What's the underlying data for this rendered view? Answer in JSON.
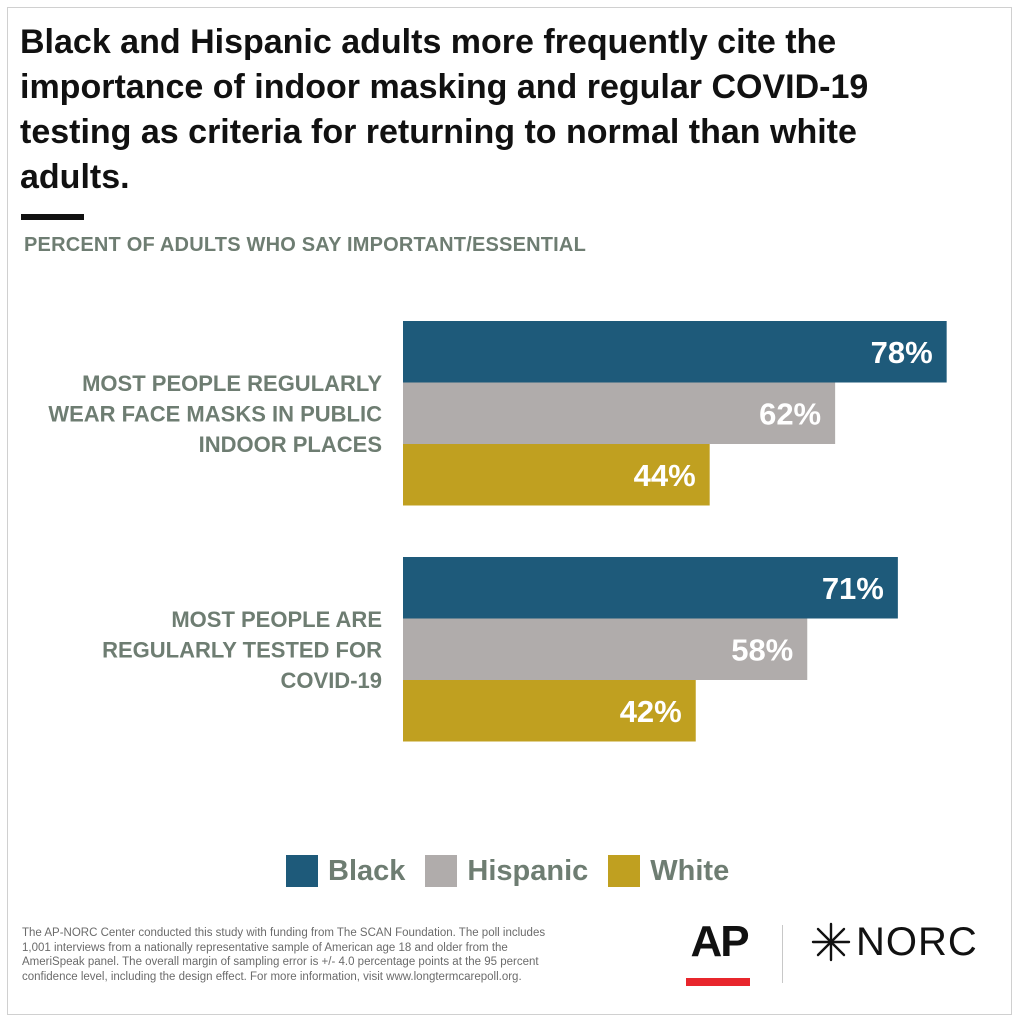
{
  "title": "Black and Hispanic adults more frequently cite the importance of indoor masking and regular COVID-19 testing as criteria for returning to normal than white adults.",
  "subtitle": "PERCENT OF ADULTS WHO SAY IMPORTANT/ESSENTIAL",
  "chart_data": {
    "type": "bar",
    "orientation": "horizontal",
    "title": "Black and Hispanic adults more frequently cite the importance of indoor masking and regular COVID-19 testing as criteria for returning to normal than white adults.",
    "subtitle": "PERCENT OF ADULTS WHO SAY IMPORTANT/ESSENTIAL",
    "categories": [
      [
        "MOST PEOPLE REGULARLY",
        "WEAR FACE MASKS IN PUBLIC",
        "INDOOR PLACES"
      ],
      [
        "MOST PEOPLE ARE",
        "REGULARLY TESTED FOR",
        "COVID-19"
      ]
    ],
    "series": [
      {
        "name": "Black",
        "values": [
          78,
          71
        ],
        "labels": [
          "78%",
          "71%"
        ],
        "color": "#1e5a7a"
      },
      {
        "name": "Hispanic",
        "values": [
          62,
          58
        ],
        "labels": [
          "62%",
          "58%"
        ],
        "color": "#b0acab"
      },
      {
        "name": "White",
        "values": [
          44,
          42
        ],
        "labels": [
          "44%",
          "42%"
        ],
        "color": "#c0a020"
      }
    ],
    "xlim": [
      0,
      100
    ],
    "grid": false,
    "legend": "bottom"
  },
  "footnote": "The AP-NORC Center conducted this study with funding from The SCAN Foundation. The poll includes 1,001 interviews from a nationally representative sample of American age 18 and older from the AmeriSpeak panel. The overall margin of sampling error is +/- 4.0 percentage points at the 95 percent confidence level, including the design effect. For more information, visit www.longtermcarepoll.org.",
  "logos": {
    "ap": "AP",
    "norc": "NORC",
    "norc_icon": "star-burst-icon",
    "ap_bar_color": "#e8262c"
  }
}
